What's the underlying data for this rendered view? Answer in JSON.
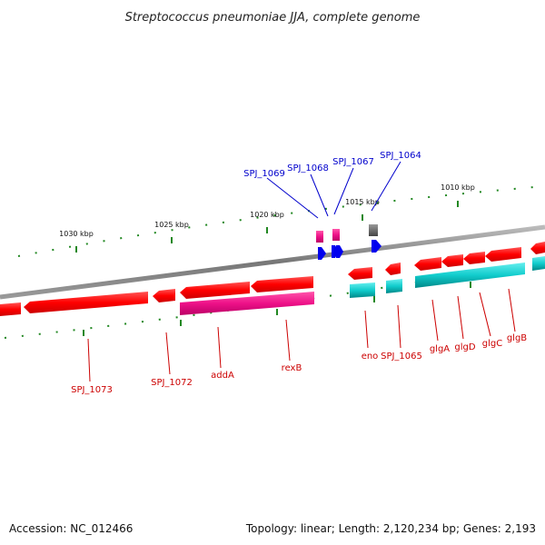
{
  "title": "Streptococcus pneumoniae JJA, complete genome",
  "footer": {
    "accession": "Accession: NC_012466",
    "summary": "Topology: linear; Length: 2,120,234 bp; Genes: 2,193"
  },
  "ticks": [
    {
      "label": "1030 kbp"
    },
    {
      "label": "1025 kbp"
    },
    {
      "label": "1020 kbp"
    },
    {
      "label": "1015 kbp"
    },
    {
      "label": "1010 kbp"
    }
  ],
  "labels_below": [
    "SPJ_1073",
    "SPJ_1072",
    "addA",
    "rexB",
    "eno",
    "SPJ_1065",
    "glgA",
    "glgD",
    "glgC",
    "glgB"
  ],
  "labels_above": [
    "SPJ_1069",
    "SPJ_1068",
    "SPJ_1067",
    "SPJ_1064"
  ],
  "colors": {
    "cds": "#ff0000",
    "gene_magenta": "#ee1188",
    "gene_cyan": "#11cccc",
    "small_blue": "#0000ee",
    "grey_feature": "#555555",
    "backbone": "#888888",
    "tick": "#228822",
    "label_red": "#cc0000",
    "label_blue": "#0000cc"
  }
}
